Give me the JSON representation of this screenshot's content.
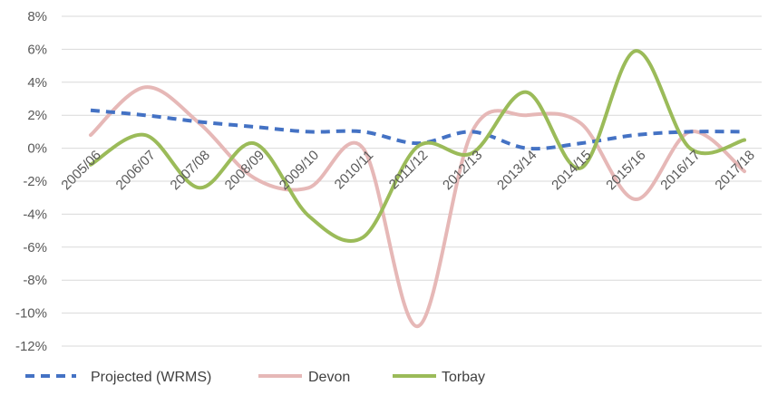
{
  "chart_data": {
    "type": "line",
    "title": "",
    "xlabel": "",
    "ylabel": "",
    "categories": [
      "2005/06",
      "2006/07",
      "2007/08",
      "2008/09",
      "2009/10",
      "2010/11",
      "2011/12",
      "2012/13",
      "2013/14",
      "2014/15",
      "2015/16",
      "2016/17",
      "2017/18"
    ],
    "ylim": [
      -0.12,
      0.08
    ],
    "yticks": [
      -0.12,
      -0.1,
      -0.08,
      -0.06,
      -0.04,
      -0.02,
      0,
      0.02,
      0.04,
      0.06,
      0.08
    ],
    "ytick_labels": [
      "-12%",
      "-10%",
      "-8%",
      "-6%",
      "-4%",
      "-2%",
      "0%",
      "2%",
      "4%",
      "6%",
      "8%"
    ],
    "grid": true,
    "legend_position": "bottom",
    "smooth": true,
    "series": [
      {
        "name": "Projected (WRMS)",
        "color": "#4472c4",
        "dash": true,
        "values": [
          0.023,
          0.02,
          0.016,
          0.013,
          0.01,
          0.01,
          0.003,
          0.01,
          0.0,
          0.003,
          0.008,
          0.01,
          0.01
        ]
      },
      {
        "name": "Devon",
        "color": "#e6b8b7",
        "dash": false,
        "values": [
          0.008,
          0.037,
          0.015,
          -0.018,
          -0.024,
          0.0,
          -0.108,
          0.01,
          0.02,
          0.015,
          -0.031,
          0.01,
          -0.014
        ]
      },
      {
        "name": "Torbay",
        "color": "#9bbb59",
        "dash": false,
        "values": [
          -0.01,
          0.008,
          -0.024,
          0.003,
          -0.041,
          -0.054,
          0.001,
          -0.003,
          0.034,
          -0.012,
          0.059,
          0.0,
          0.005
        ]
      }
    ]
  }
}
